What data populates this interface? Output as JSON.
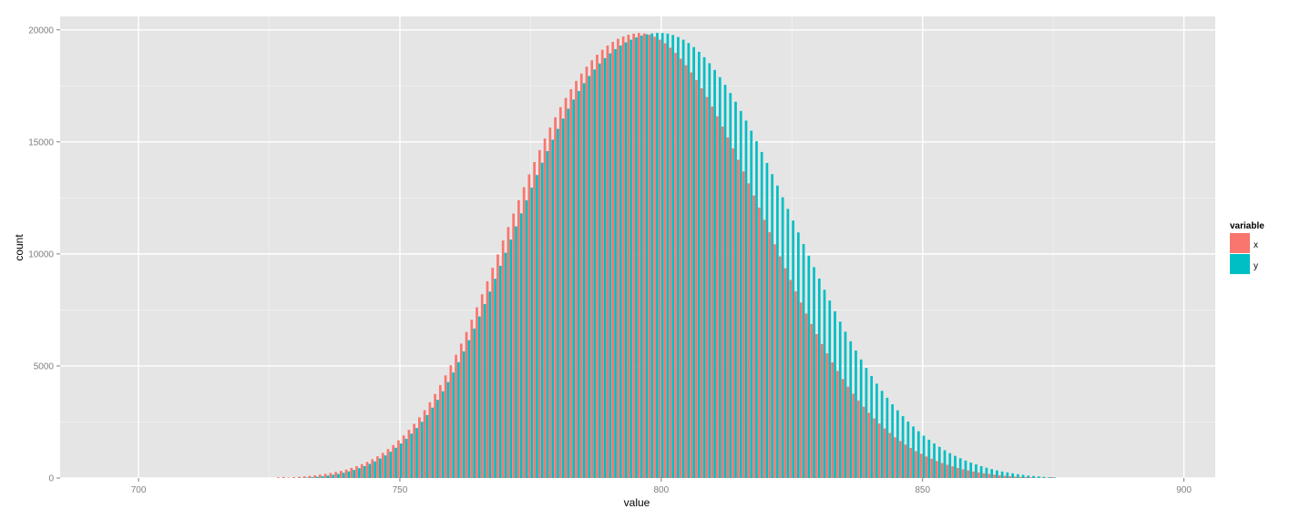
{
  "chart_data": {
    "type": "bar",
    "subtype": "histogram-dodged",
    "xlabel": "value",
    "ylabel": "count",
    "xlim": [
      685,
      906
    ],
    "ylim": [
      0,
      20600
    ],
    "x_ticks": [
      700,
      750,
      800,
      850,
      900
    ],
    "y_ticks": [
      0,
      5000,
      10000,
      15000,
      20000
    ],
    "grid": true,
    "legend": {
      "title": "variable",
      "position": "right"
    },
    "bin_width": 1,
    "bin_centers": [
      727,
      728,
      729,
      730,
      731,
      732,
      733,
      734,
      735,
      736,
      737,
      738,
      739,
      740,
      741,
      742,
      743,
      744,
      745,
      746,
      747,
      748,
      749,
      750,
      751,
      752,
      753,
      754,
      755,
      756,
      757,
      758,
      759,
      760,
      761,
      762,
      763,
      764,
      765,
      766,
      767,
      768,
      769,
      770,
      771,
      772,
      773,
      774,
      775,
      776,
      777,
      778,
      779,
      780,
      781,
      782,
      783,
      784,
      785,
      786,
      787,
      788,
      789,
      790,
      791,
      792,
      793,
      794,
      795,
      796,
      797,
      798,
      799,
      800,
      801,
      802,
      803,
      804,
      805,
      806,
      807,
      808,
      809,
      810,
      811,
      812,
      813,
      814,
      815,
      816,
      817,
      818,
      819,
      820,
      821,
      822,
      823,
      824,
      825,
      826,
      827,
      828,
      829,
      830,
      831,
      832,
      833,
      834,
      835,
      836,
      837,
      838,
      839,
      840,
      841,
      842,
      843,
      844,
      845,
      846,
      847,
      848,
      849,
      850,
      851,
      852,
      853,
      854,
      855,
      856,
      857,
      858,
      859,
      860,
      861,
      862,
      863,
      864,
      865,
      866,
      867,
      868,
      869,
      870,
      871,
      872,
      873,
      874,
      875
    ],
    "series": [
      {
        "name": "x",
        "color": "#F8766D",
        "values": [
          30,
          45,
          20,
          40,
          55,
          75,
          95,
          120,
          150,
          185,
          225,
          270,
          320,
          380,
          450,
          530,
          620,
          720,
          840,
          970,
          1120,
          1290,
          1470,
          1680,
          1900,
          2150,
          2420,
          2710,
          3030,
          3380,
          3750,
          4150,
          4580,
          5030,
          5500,
          6000,
          6520,
          7060,
          7620,
          8200,
          8780,
          9380,
          9980,
          10600,
          11200,
          11800,
          12400,
          12980,
          13550,
          14100,
          14630,
          15150,
          15640,
          16100,
          16550,
          16960,
          17350,
          17720,
          18050,
          18360,
          18640,
          18890,
          19110,
          19300,
          19460,
          19600,
          19700,
          19780,
          19830,
          19860,
          19840,
          19780,
          19690,
          19560,
          19400,
          19200,
          18970,
          18710,
          18420,
          18100,
          17760,
          17390,
          17000,
          16580,
          16140,
          15680,
          15200,
          14710,
          14200,
          13680,
          13150,
          12610,
          12070,
          11520,
          10970,
          10430,
          9890,
          9360,
          8840,
          8330,
          7830,
          7340,
          6870,
          6420,
          5980,
          5560,
          5160,
          4780,
          4420,
          4080,
          3760,
          3460,
          3180,
          2910,
          2660,
          2430,
          2210,
          2010,
          1820,
          1650,
          1490,
          1340,
          1200,
          1080,
          960,
          860,
          760,
          670,
          590,
          520,
          450,
          390,
          340,
          290,
          250,
          210,
          180,
          150,
          120,
          100,
          80,
          65,
          50,
          40,
          30,
          20,
          15,
          10,
          40
        ],
        "note": ""
      },
      {
        "name": "y",
        "color": "#00BFC4",
        "values": [
          0,
          0,
          0,
          0,
          10,
          20,
          35,
          55,
          80,
          110,
          145,
          185,
          235,
          295,
          360,
          440,
          530,
          630,
          740,
          870,
          1010,
          1170,
          1350,
          1540,
          1750,
          1980,
          2230,
          2510,
          2810,
          3140,
          3490,
          3870,
          4280,
          4710,
          5170,
          5650,
          6150,
          6670,
          7210,
          7760,
          8320,
          8890,
          9470,
          10050,
          10640,
          11230,
          11810,
          12390,
          12960,
          13520,
          14070,
          14590,
          15100,
          15580,
          16040,
          16480,
          16890,
          17270,
          17620,
          17940,
          18230,
          18500,
          18740,
          18950,
          19140,
          19300,
          19440,
          19560,
          19660,
          19740,
          19800,
          19840,
          19860,
          19860,
          19830,
          19770,
          19680,
          19560,
          19410,
          19230,
          19020,
          18780,
          18510,
          18210,
          17890,
          17550,
          17180,
          16790,
          16380,
          15950,
          15500,
          15030,
          14550,
          14060,
          13560,
          13050,
          12530,
          12010,
          11490,
          10960,
          10440,
          9920,
          9410,
          8900,
          8400,
          7920,
          7440,
          6980,
          6530,
          6100,
          5690,
          5290,
          4910,
          4550,
          4210,
          3890,
          3580,
          3290,
          3020,
          2760,
          2520,
          2300,
          2090,
          1890,
          1710,
          1540,
          1390,
          1240,
          1110,
          990,
          880,
          780,
          690,
          610,
          530,
          460,
          400,
          340,
          290,
          250,
          210,
          170,
          140,
          110,
          90,
          70,
          50,
          35,
          25,
          15,
          10,
          0,
          0
        ]
      }
    ]
  }
}
